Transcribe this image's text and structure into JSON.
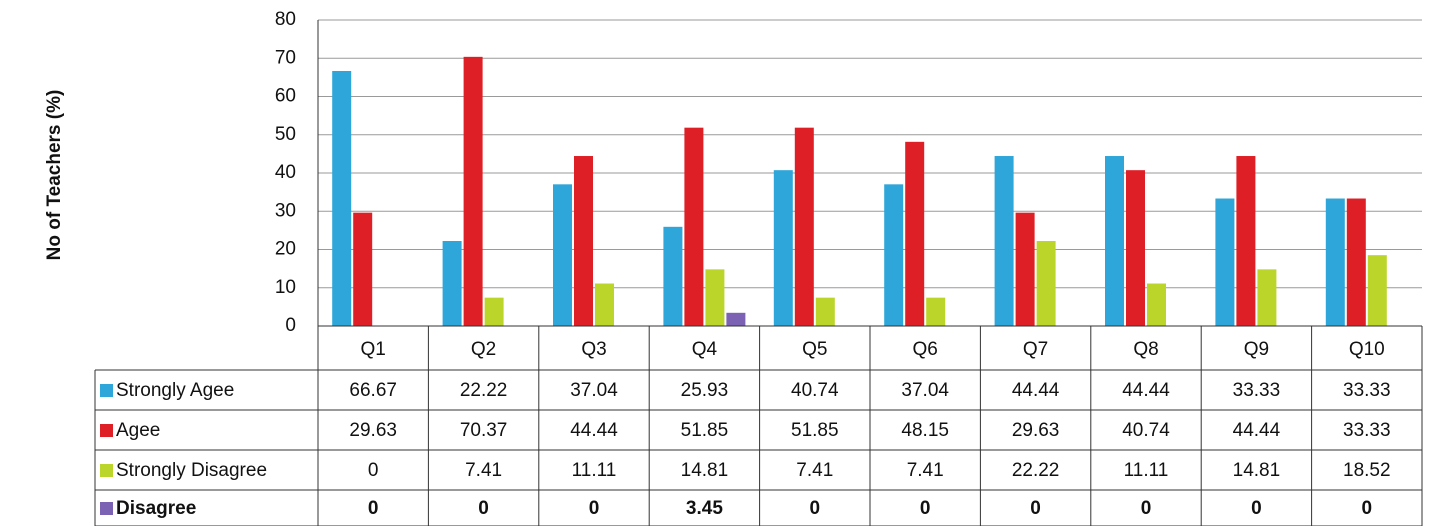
{
  "chart_data": {
    "type": "bar",
    "y_label": "No of Teachers (%)",
    "categories": [
      "Q1",
      "Q2",
      "Q3",
      "Q4",
      "Q5",
      "Q6",
      "Q7",
      "Q8",
      "Q9",
      "Q10"
    ],
    "series": [
      {
        "name": "Strongly Agee",
        "color": "#2ea6d9",
        "values": [
          66.67,
          22.22,
          37.04,
          25.93,
          40.74,
          37.04,
          44.44,
          44.44,
          33.33,
          33.33
        ]
      },
      {
        "name": "Agee",
        "color": "#df1f26",
        "values": [
          29.63,
          70.37,
          44.44,
          51.85,
          51.85,
          48.15,
          29.63,
          40.74,
          44.44,
          33.33
        ]
      },
      {
        "name": "Strongly Disagree",
        "color": "#bcd52b",
        "values": [
          0,
          7.41,
          11.11,
          14.81,
          7.41,
          7.41,
          22.22,
          11.11,
          14.81,
          18.52
        ]
      },
      {
        "name": "Disagree",
        "color": "#7b62b2",
        "values": [
          0,
          0,
          0,
          3.45,
          0,
          0,
          0,
          0,
          0,
          0
        ]
      }
    ],
    "ylim": [
      0,
      80
    ],
    "yticks": [
      0,
      10,
      20,
      30,
      40,
      50,
      60,
      70,
      80
    ],
    "grid": true,
    "legend": "table"
  }
}
